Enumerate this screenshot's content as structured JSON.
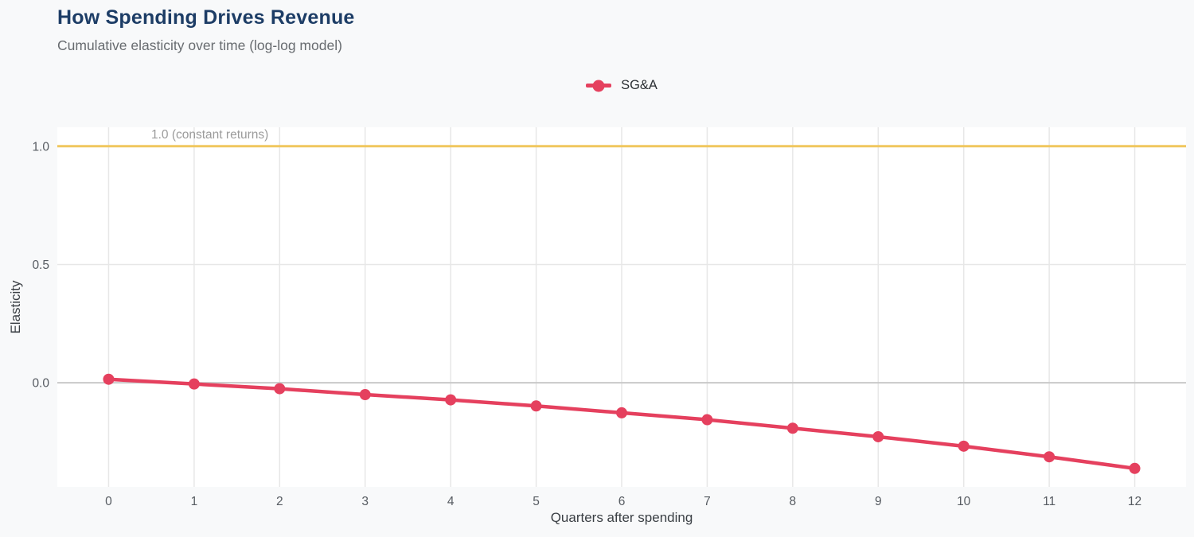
{
  "page": {
    "background_color": "#f8f9fa",
    "panel_color": "#ffffff"
  },
  "header": {
    "title": "How Spending Drives Revenue",
    "subtitle": "Cumulative elasticity over time (log-log model)"
  },
  "chart_data": {
    "type": "line",
    "title": "How Spending Drives Revenue",
    "subtitle": "Cumulative elasticity over time (log-log model)",
    "xlabel": "Quarters after spending",
    "ylabel": "Elasticity",
    "x": [
      0,
      1,
      2,
      3,
      4,
      5,
      6,
      7,
      8,
      9,
      10,
      11,
      12
    ],
    "series": [
      {
        "name": "SG&A",
        "color": "#e5405e",
        "values": [
          0.015,
          -0.005,
          -0.025,
          -0.05,
          -0.072,
          -0.098,
          -0.127,
          -0.156,
          -0.192,
          -0.228,
          -0.268,
          -0.313,
          -0.362
        ]
      }
    ],
    "reference_line": {
      "value": 1.0,
      "label": "1.0 (constant returns)",
      "color": "#f0c75e",
      "label_color": "#9b9b9b"
    },
    "xlim": [
      -0.6,
      12.6
    ],
    "ylim": [
      -0.44,
      1.08
    ],
    "xticks": [
      {
        "value": 0,
        "label": "0"
      },
      {
        "value": 1,
        "label": "1"
      },
      {
        "value": 2,
        "label": "2"
      },
      {
        "value": 3,
        "label": "3"
      },
      {
        "value": 4,
        "label": "4"
      },
      {
        "value": 5,
        "label": "5"
      },
      {
        "value": 6,
        "label": "6"
      },
      {
        "value": 7,
        "label": "7"
      },
      {
        "value": 8,
        "label": "8"
      },
      {
        "value": 9,
        "label": "9"
      },
      {
        "value": 10,
        "label": "10"
      },
      {
        "value": 11,
        "label": "11"
      },
      {
        "value": 12,
        "label": "12"
      }
    ],
    "yticks": [
      {
        "value": 0.0,
        "label": "0.0"
      },
      {
        "value": 0.5,
        "label": "0.5"
      },
      {
        "value": 1.0,
        "label": "1.0"
      }
    ],
    "grid": true,
    "legend_position": "top-center",
    "colors": {
      "grid": "#e7e7e7",
      "zero_line": "#c9c9c9",
      "tick_label": "#565b61"
    }
  }
}
